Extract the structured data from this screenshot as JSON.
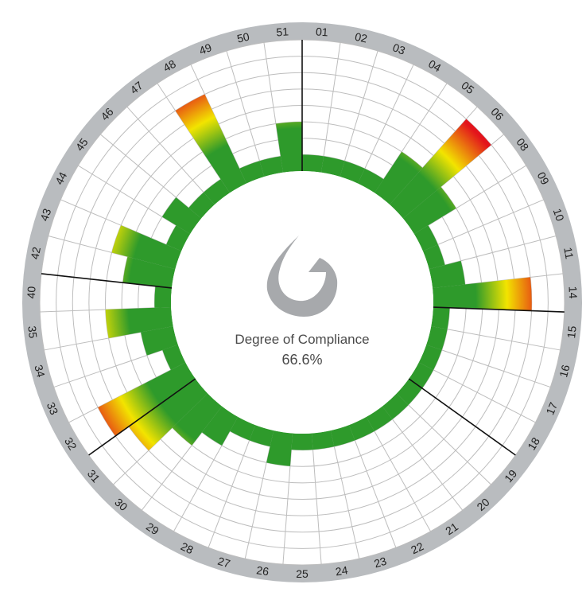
{
  "chart_data": {
    "type": "radial-bar",
    "center_label": "Degree of Compliance",
    "center_value": "66.6%",
    "scale_levels": 8,
    "categories": [
      "01",
      "02",
      "03",
      "04",
      "05",
      "06",
      "08",
      "09",
      "10",
      "11",
      "14",
      "15",
      "16",
      "17",
      "18",
      "19",
      "20",
      "21",
      "22",
      "23",
      "24",
      "25",
      "26",
      "27",
      "28",
      "29",
      "30",
      "31",
      "32",
      "33",
      "34",
      "35",
      "40",
      "42",
      "43",
      "44",
      "45",
      "46",
      "47",
      "48",
      "49",
      "50",
      "51"
    ],
    "values": [
      1,
      1,
      1,
      1,
      3,
      7,
      3,
      1,
      1,
      2,
      6,
      1,
      1,
      1,
      1,
      1,
      1,
      1,
      1,
      1,
      1,
      1,
      2,
      1,
      1,
      2,
      3,
      5,
      6,
      1,
      2,
      4,
      1,
      3,
      4,
      1,
      2,
      1,
      1,
      6,
      1,
      1,
      3
    ],
    "separator_boundaries": [
      0,
      11,
      15,
      28,
      33
    ],
    "colors": {
      "low": "#2e9a2b",
      "mid": "#f2e400",
      "high": "#e3141c",
      "ring": "#b9bcbf",
      "grid": "#bdbdbd",
      "logo": "#a7a9ac"
    }
  }
}
